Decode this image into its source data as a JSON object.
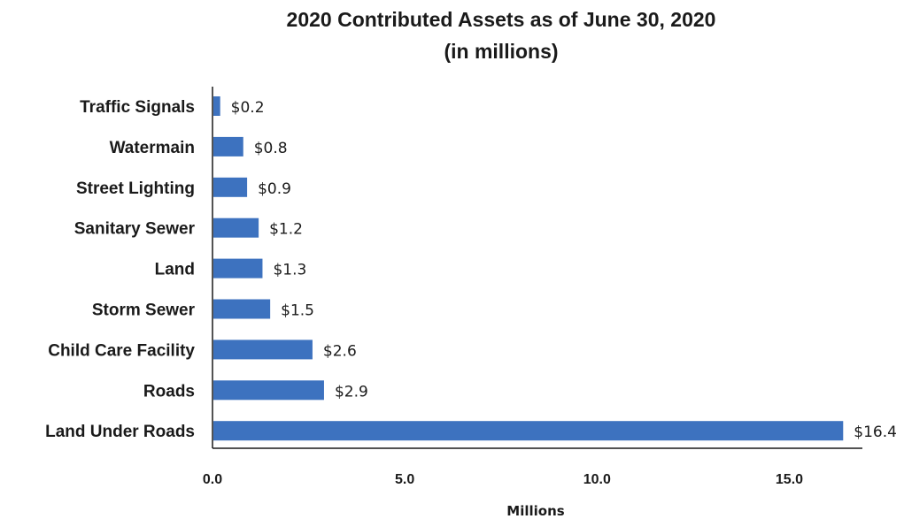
{
  "chart_data": {
    "type": "bar",
    "orientation": "horizontal",
    "title": "2020 Contributed Assets as of June 30, 2020",
    "subtitle": "(in millions)",
    "categories": [
      "Traffic Signals",
      "Watermain",
      "Street Lighting",
      "Sanitary Sewer",
      "Land",
      "Storm Sewer",
      "Child Care Facility",
      "Roads",
      "Land Under Roads"
    ],
    "values": [
      0.2,
      0.8,
      0.9,
      1.2,
      1.3,
      1.5,
      2.6,
      2.9,
      16.4
    ],
    "data_labels": [
      "$0.2",
      "$0.8",
      "$0.9",
      "$1.2",
      "$1.3",
      "$1.5",
      "$2.6",
      "$2.9",
      "$16.4"
    ],
    "xlabel": "Millions",
    "ylabel": "",
    "xlim": [
      0,
      16.9
    ],
    "x_ticks": [
      0,
      5,
      10,
      15
    ],
    "x_tick_labels": [
      "0.0",
      "5.0",
      "10.0",
      "15.0"
    ],
    "grid": false,
    "legend": "none",
    "bar_color": "#3d72bf",
    "axis_color": "#1a1a1a"
  }
}
